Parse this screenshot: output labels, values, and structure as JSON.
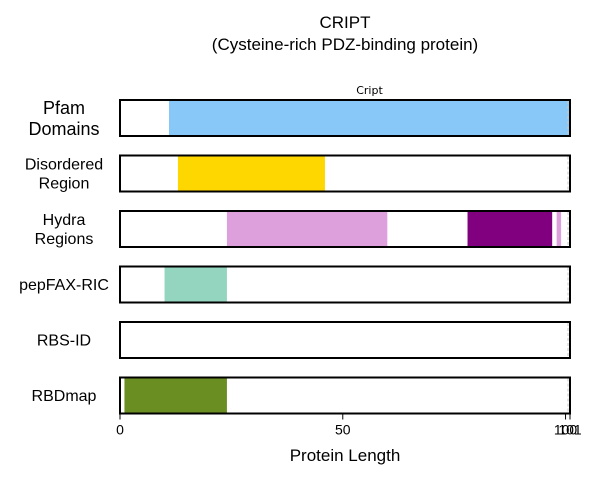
{
  "chart_data": {
    "type": "bar",
    "title": "CRIPT",
    "subtitle": "(Cysteine-rich PDZ-binding protein)",
    "xlabel": "Protein Length",
    "xlim": [
      0,
      101
    ],
    "xticks": [
      {
        "value": 0,
        "label": "0"
      },
      {
        "value": 50,
        "label": "50"
      },
      {
        "value": 100,
        "label": "100"
      },
      {
        "value": 101,
        "label": "101"
      }
    ],
    "protein_length": 101,
    "tracks": [
      {
        "label_lines": [
          "Pfam",
          "Domains"
        ],
        "label_size": "large",
        "segments": [
          {
            "start": 11,
            "end": 101,
            "color": "#87C8F8",
            "label": "Cript"
          }
        ]
      },
      {
        "label_lines": [
          "Disordered",
          "Region"
        ],
        "label_size": "normal",
        "segments": [
          {
            "start": 13,
            "end": 46,
            "color": "#FFD700"
          }
        ]
      },
      {
        "label_lines": [
          "Hydra",
          "Regions"
        ],
        "label_size": "normal",
        "segments": [
          {
            "start": 24,
            "end": 60,
            "color": "#DDA0DD"
          },
          {
            "start": 78,
            "end": 97,
            "color": "#800080"
          },
          {
            "start": 98,
            "end": 99,
            "color": "#DDA0DD"
          }
        ]
      },
      {
        "label_lines": [
          "pepFAX-RIC"
        ],
        "label_size": "normal",
        "segments": [
          {
            "start": 10,
            "end": 24,
            "color": "#93D5BF"
          }
        ]
      },
      {
        "label_lines": [
          "RBS-ID"
        ],
        "label_size": "normal",
        "segments": []
      },
      {
        "label_lines": [
          "RBDmap"
        ],
        "label_size": "normal",
        "segments": [
          {
            "start": 1,
            "end": 24,
            "color": "#6B8E23"
          }
        ]
      }
    ],
    "grid": false,
    "legend": "none"
  }
}
